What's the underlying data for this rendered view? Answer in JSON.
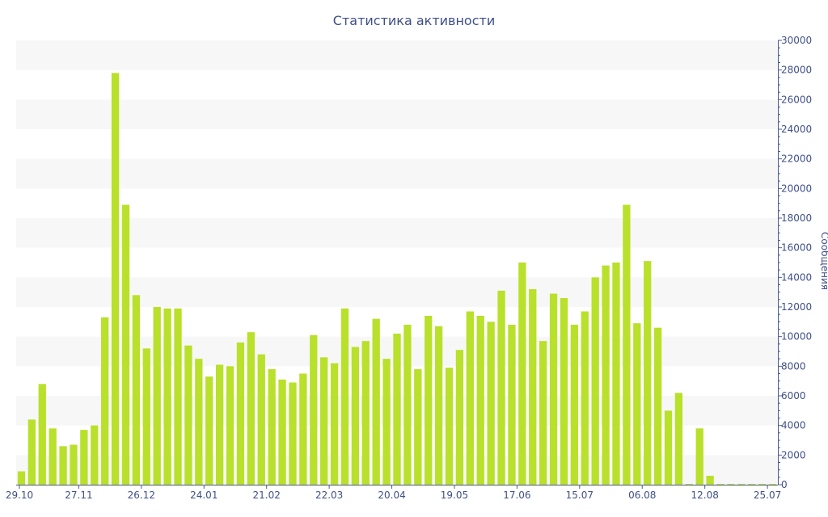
{
  "chart_data": {
    "type": "bar",
    "title": "Статистика активности",
    "ylabel": "Сообщения",
    "ylim": [
      0,
      30000
    ],
    "y_ticks": [
      0,
      2000,
      4000,
      6000,
      8000,
      10000,
      12000,
      14000,
      16000,
      18000,
      20000,
      22000,
      24000,
      26000,
      28000,
      30000
    ],
    "y_axis_side": "right",
    "x_tick_labels": [
      {
        "label": "29.10",
        "index": 0
      },
      {
        "label": "27.11",
        "index": 6
      },
      {
        "label": "26.12",
        "index": 12
      },
      {
        "label": "24.01",
        "index": 18
      },
      {
        "label": "21.02",
        "index": 24
      },
      {
        "label": "22.03",
        "index": 30
      },
      {
        "label": "20.04",
        "index": 36
      },
      {
        "label": "19.05",
        "index": 42
      },
      {
        "label": "17.06",
        "index": 48
      },
      {
        "label": "15.07",
        "index": 54
      },
      {
        "label": "06.08",
        "index": 60
      },
      {
        "label": "12.08",
        "index": 66
      },
      {
        "label": "25.07",
        "index": 72
      }
    ],
    "values": [
      900,
      4400,
      6800,
      3800,
      2600,
      2700,
      3700,
      4000,
      11300,
      27800,
      18900,
      12800,
      9200,
      12000,
      11900,
      11900,
      9400,
      8500,
      7300,
      8100,
      8000,
      9600,
      10300,
      8800,
      7800,
      7100,
      6900,
      7500,
      10100,
      8600,
      8200,
      11900,
      9300,
      9700,
      11200,
      8500,
      10200,
      10800,
      7800,
      11400,
      10700,
      7900,
      9100,
      11700,
      11400,
      11000,
      13100,
      10800,
      15000,
      13200,
      9700,
      12900,
      12600,
      10800,
      11700,
      14000,
      14800,
      15000,
      18900,
      10900,
      15100,
      10600,
      5000,
      6200,
      0,
      3800,
      600,
      0,
      0,
      0,
      0,
      0,
      0
    ],
    "grid": "alternating horizontal bands",
    "colors": {
      "bar": "#b9e02b",
      "axis": "#4a5a8f",
      "text": "#3e4f8a",
      "band": "#f7f7f7"
    }
  }
}
